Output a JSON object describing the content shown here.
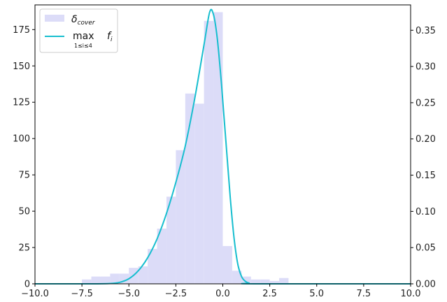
{
  "chart_data": {
    "type": "bar",
    "title": "",
    "xlabel": "",
    "ylabel": "",
    "xlim": [
      -10.0,
      10.0
    ],
    "ylim_left": [
      0,
      192
    ],
    "ylim_right": [
      0,
      0.385
    ],
    "grid": false,
    "legend_position": "top-left",
    "x_ticks": [
      "−10.0",
      "−7.5",
      "−5.0",
      "−2.5",
      "0.0",
      "2.5",
      "5.0",
      "7.5",
      "10.0"
    ],
    "x_tick_values": [
      -10,
      -7.5,
      -5,
      -2.5,
      0,
      2.5,
      5,
      7.5,
      10
    ],
    "y_left_ticks": [
      "0",
      "25",
      "50",
      "75",
      "100",
      "125",
      "150",
      "175"
    ],
    "y_left_tick_values": [
      0,
      25,
      50,
      75,
      100,
      125,
      150,
      175
    ],
    "y_right_ticks": [
      "0.00",
      "0.05",
      "0.10",
      "0.15",
      "0.20",
      "0.25",
      "0.30",
      "0.35"
    ],
    "y_right_tick_values": [
      0,
      0.05,
      0.1,
      0.15,
      0.2,
      0.25,
      0.3,
      0.35
    ],
    "histogram": {
      "name": "δ_cover",
      "color": "#dcdcf8",
      "bins": [
        {
          "x0": -7.5,
          "x1": -7.0,
          "count": 3
        },
        {
          "x0": -7.0,
          "x1": -6.5,
          "count": 5
        },
        {
          "x0": -6.5,
          "x1": -6.0,
          "count": 5
        },
        {
          "x0": -6.0,
          "x1": -5.5,
          "count": 7
        },
        {
          "x0": -5.5,
          "x1": -5.0,
          "count": 7
        },
        {
          "x0": -5.0,
          "x1": -4.5,
          "count": 11
        },
        {
          "x0": -4.5,
          "x1": -4.0,
          "count": 12
        },
        {
          "x0": -4.0,
          "x1": -3.5,
          "count": 24
        },
        {
          "x0": -3.5,
          "x1": -3.0,
          "count": 38
        },
        {
          "x0": -3.0,
          "x1": -2.5,
          "count": 60
        },
        {
          "x0": -2.5,
          "x1": -2.0,
          "count": 92
        },
        {
          "x0": -2.0,
          "x1": -1.5,
          "count": 131
        },
        {
          "x0": -1.5,
          "x1": -1.0,
          "count": 124
        },
        {
          "x0": -1.0,
          "x1": -0.5,
          "count": 181
        },
        {
          "x0": -0.5,
          "x1": 0.0,
          "count": 187
        },
        {
          "x0": 0.0,
          "x1": 0.5,
          "count": 26
        },
        {
          "x0": 0.5,
          "x1": 1.0,
          "count": 9
        },
        {
          "x0": 1.0,
          "x1": 1.5,
          "count": 5
        },
        {
          "x0": 1.5,
          "x1": 2.0,
          "count": 3
        },
        {
          "x0": 2.0,
          "x1": 2.5,
          "count": 3
        },
        {
          "x0": 2.5,
          "x1": 3.0,
          "count": 2
        },
        {
          "x0": 3.0,
          "x1": 3.5,
          "count": 4
        }
      ]
    },
    "curve": {
      "name": "max f_i (1≤i≤4)",
      "color": "#17becf",
      "axis": "right",
      "points": [
        [
          -10.0,
          0.0
        ],
        [
          -7.0,
          0.0
        ],
        [
          -6.0,
          0.0005
        ],
        [
          -5.5,
          0.002
        ],
        [
          -5.0,
          0.007
        ],
        [
          -4.5,
          0.018
        ],
        [
          -4.0,
          0.036
        ],
        [
          -3.5,
          0.062
        ],
        [
          -3.0,
          0.097
        ],
        [
          -2.5,
          0.14
        ],
        [
          -2.0,
          0.19
        ],
        [
          -1.5,
          0.255
        ],
        [
          -1.0,
          0.33
        ],
        [
          -0.7,
          0.375
        ],
        [
          -0.5,
          0.372
        ],
        [
          -0.3,
          0.34
        ],
        [
          -0.1,
          0.285
        ],
        [
          0.0,
          0.252
        ],
        [
          0.2,
          0.185
        ],
        [
          0.4,
          0.118
        ],
        [
          0.6,
          0.063
        ],
        [
          0.8,
          0.027
        ],
        [
          1.0,
          0.01
        ],
        [
          1.2,
          0.0035
        ],
        [
          1.4,
          0.001
        ],
        [
          1.7,
          0.0
        ],
        [
          10.0,
          0.0
        ]
      ]
    },
    "legend": [
      {
        "label": "δ",
        "sub": "cover",
        "kind": "patch"
      },
      {
        "label": "max",
        "sub": "1≤i≤4",
        "var": "f",
        "var_sub": "i",
        "kind": "line"
      }
    ]
  }
}
